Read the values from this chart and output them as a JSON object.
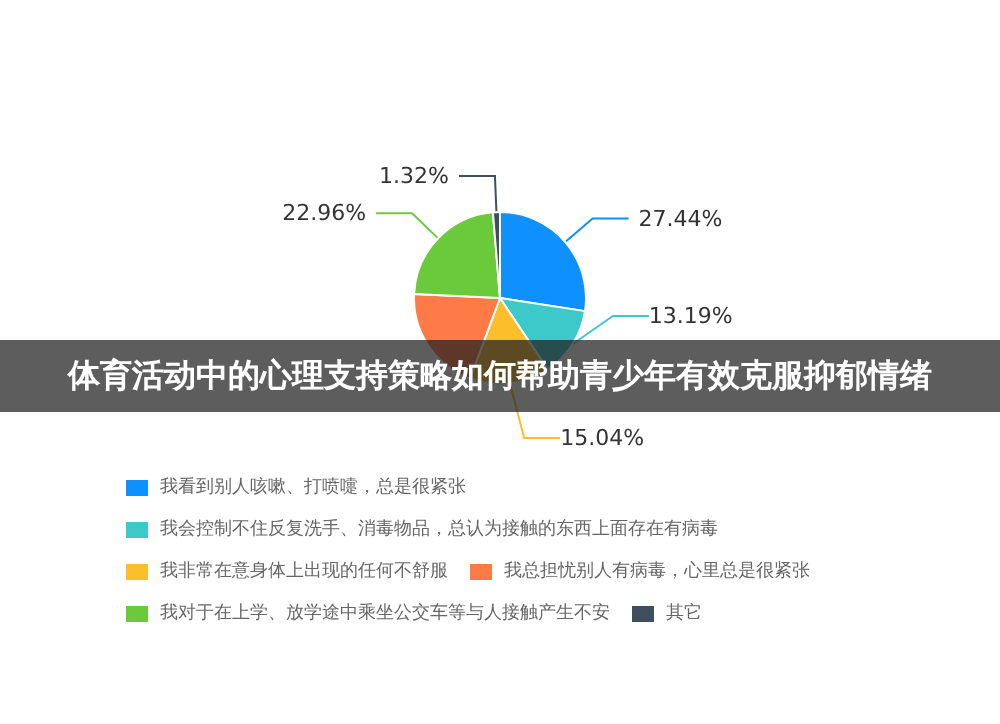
{
  "chart_data": {
    "type": "pie",
    "title": "体育活动中的心理支持策略如何帮助青少年有效克服抑郁情绪",
    "categories": [
      "我看到别人咳嗽、打喷嚏，总是很紧张",
      "我会控制不住反复洗手、消毒物品，总认为接触的东西上面存在有病毒",
      "我非常在意身体上出现的任何不舒服",
      "我总担忧别人有病毒，心里总是很紧张",
      "我对于在上学、放学途中乘坐公交车等与人接触产生不安",
      "其它"
    ],
    "values": [
      27.44,
      13.19,
      15.04,
      20.05,
      22.96,
      1.32
    ],
    "value_labels": [
      "27.44%",
      "13.19%",
      "15.04%",
      null,
      "22.96%",
      "1.32%"
    ],
    "colors": [
      "#0e90fe",
      "#3dc9c9",
      "#fbbf2b",
      "#fe7a46",
      "#6bc93c",
      "#3f4f5d"
    ],
    "legend": "bottom"
  }
}
